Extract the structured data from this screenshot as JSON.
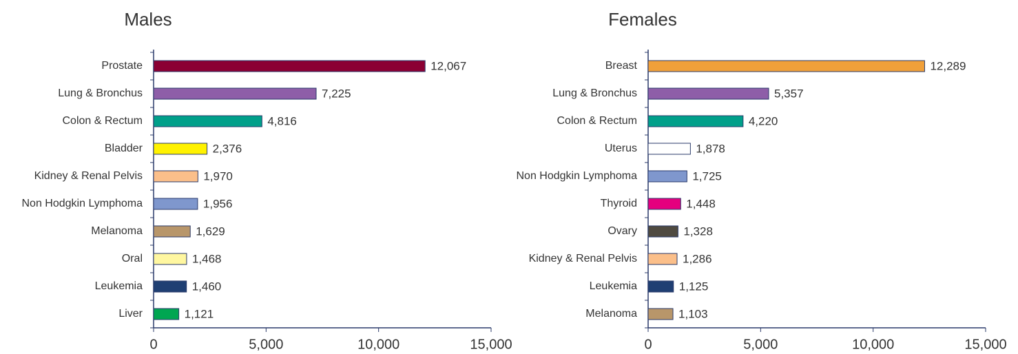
{
  "chart_data": [
    {
      "type": "bar",
      "orientation": "horizontal",
      "title": "Males",
      "categories": [
        "Prostate",
        "Lung & Bronchus",
        "Colon & Rectum",
        "Bladder",
        "Kidney & Renal Pelvis",
        "Non Hodgkin Lymphoma",
        "Melanoma",
        "Oral",
        "Leukemia",
        "Liver"
      ],
      "values": [
        12067,
        7225,
        4816,
        2376,
        1970,
        1956,
        1629,
        1468,
        1460,
        1121
      ],
      "value_labels": [
        "12,067",
        "7,225",
        "4,816",
        "2,376",
        "1,970",
        "1,956",
        "1,629",
        "1,468",
        "1,460",
        "1,121"
      ],
      "colors": [
        "#8b0033",
        "#8e5ea8",
        "#00a08a",
        "#fff200",
        "#fbbf8a",
        "#7f97cd",
        "#b8966a",
        "#fff7a0",
        "#1f3f73",
        "#00a651"
      ],
      "xlim": [
        0,
        15000
      ],
      "xticks": [
        0,
        {
          "value": 5000,
          "label": "5,000"
        },
        {
          "value": 10000,
          "label": "10,000"
        },
        {
          "value": 15000,
          "label": "15,000"
        }
      ]
    },
    {
      "type": "bar",
      "orientation": "horizontal",
      "title": "Females",
      "categories": [
        "Breast",
        "Lung & Bronchus",
        "Colon & Rectum",
        "Uterus",
        "Non Hodgkin Lymphoma",
        "Thyroid",
        "Ovary",
        "Kidney & Renal Pelvis",
        "Leukemia",
        "Melanoma"
      ],
      "values": [
        12289,
        5357,
        4220,
        1878,
        1725,
        1448,
        1328,
        1286,
        1125,
        1103
      ],
      "value_labels": [
        "12,289",
        "5,357",
        "4,220",
        "1,878",
        "1,725",
        "1,448",
        "1,328",
        "1,286",
        "1,125",
        "1,103"
      ],
      "colors": [
        "#f0a03a",
        "#8e5ea8",
        "#00a08a",
        "#ffffff",
        "#7f97cd",
        "#e5007e",
        "#4f4a40",
        "#fbbf8a",
        "#1f3f73",
        "#b8966a"
      ],
      "xlim": [
        0,
        15000
      ],
      "xticks": [
        0,
        {
          "value": 5000,
          "label": "5,000"
        },
        {
          "value": 10000,
          "label": "10,000"
        },
        {
          "value": 15000,
          "label": "15,000"
        }
      ]
    }
  ]
}
